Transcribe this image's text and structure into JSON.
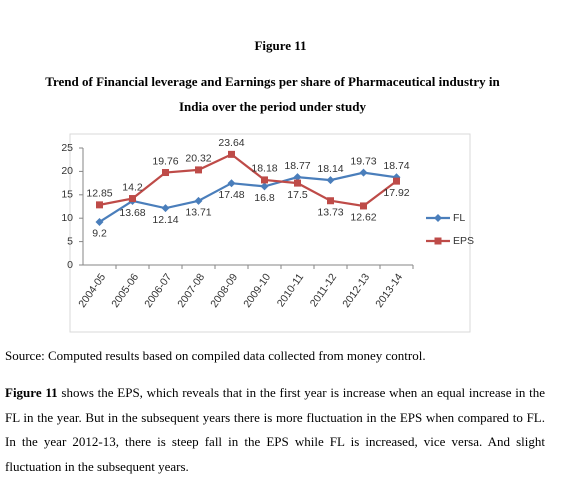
{
  "figure_label": "Figure 11",
  "title_lines": [
    "Trend of Financial leverage and Earnings per share of Pharmaceutical industry in",
    "India over the period under study"
  ],
  "chart_data": {
    "type": "line",
    "categories": [
      "2004-05",
      "2005-06",
      "2006-07",
      "2007-08",
      "2008-09",
      "2009-10",
      "2010-11",
      "2011-12",
      "2012-13",
      "2013-14"
    ],
    "series": [
      {
        "name": "FL",
        "color": "#4a7ebb",
        "values": [
          9.2,
          13.68,
          12.14,
          13.71,
          17.48,
          16.8,
          18.77,
          18.14,
          19.73,
          18.74
        ]
      },
      {
        "name": "EPS",
        "color": "#be4b48",
        "values": [
          12.85,
          14.2,
          19.76,
          20.32,
          23.64,
          18.18,
          17.5,
          13.73,
          12.62,
          17.92
        ]
      }
    ],
    "ylim": [
      0,
      25
    ],
    "yticks": [
      0,
      5,
      10,
      15,
      20,
      25
    ],
    "legend": "right"
  },
  "source": "Source: Computed results based on compiled data collected from money control.",
  "paragraph": {
    "lead": "Figure 11",
    "text": "shows the EPS, which reveals that in the first year is increase when an equal increase in the FL in the year. But in the subsequent years there is more fluctuation in the EPS when compared to FL. In the year 2012-13, there is steep fall in the EPS while FL is increased, vice versa. And slight fluctuation in the subsequent years."
  }
}
